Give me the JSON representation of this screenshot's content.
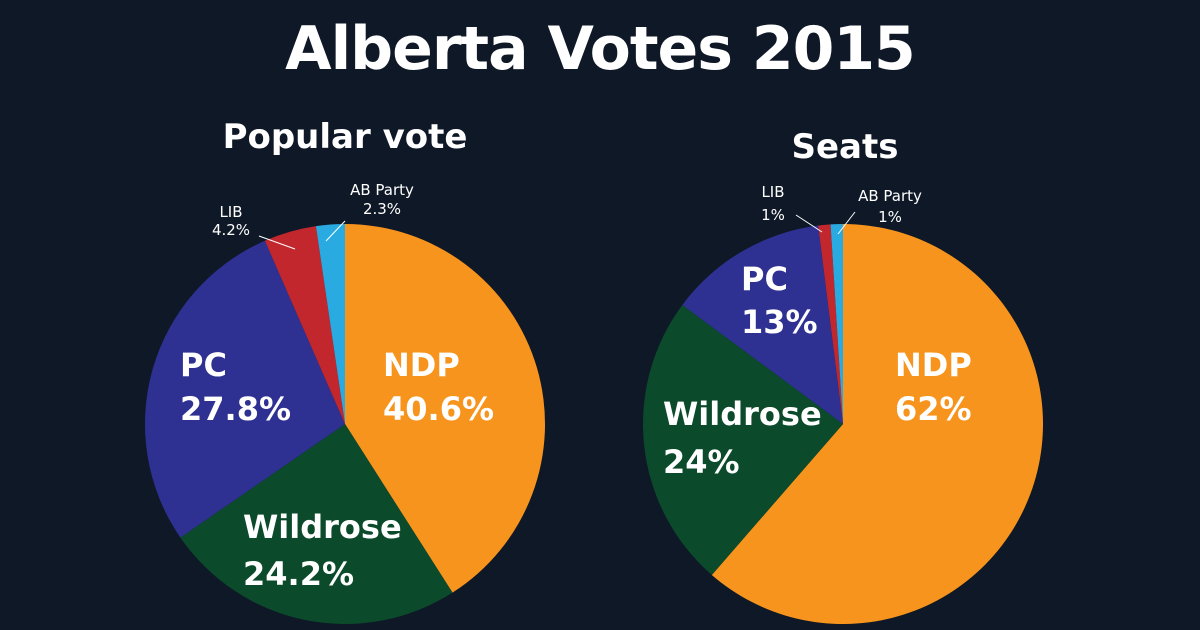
{
  "header": {
    "title": "Alberta Votes 2015"
  },
  "chart_data": [
    {
      "type": "pie",
      "title": "Popular vote",
      "categories": [
        "NDP",
        "Wildrose",
        "PC",
        "LIB",
        "AB Party"
      ],
      "values": [
        40.6,
        24.2,
        27.8,
        4.2,
        2.3
      ],
      "labels": [
        "40.6%",
        "24.2%",
        "27.8%",
        "4.2%",
        "2.3%"
      ],
      "colors": [
        "#f7941d",
        "#0b4a2a",
        "#2e3192",
        "#c1272d",
        "#29abe2"
      ]
    },
    {
      "type": "pie",
      "title": "Seats",
      "categories": [
        "NDP",
        "Wildrose",
        "PC",
        "LIB",
        "AB Party"
      ],
      "values": [
        62,
        24,
        13,
        1,
        1
      ],
      "labels": [
        "62%",
        "24%",
        "13%",
        "1%",
        "1%"
      ],
      "colors": [
        "#f7941d",
        "#0b4a2a",
        "#2e3192",
        "#c1272d",
        "#29abe2"
      ]
    }
  ]
}
